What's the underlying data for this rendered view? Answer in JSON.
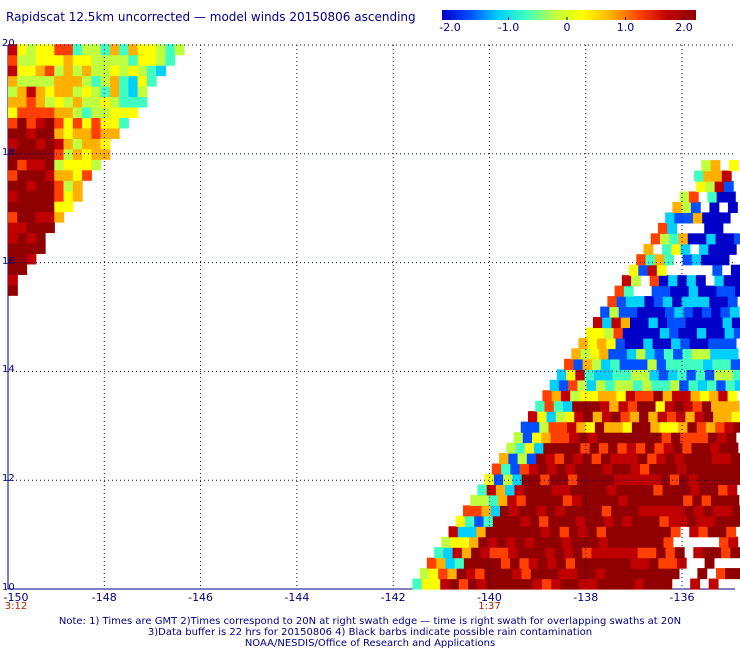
{
  "title": "Rapidscat 12.5km uncorrected — model winds 20150806 ascending",
  "colorbar": {
    "ticks": [
      "-2.0",
      "-1.0",
      "0",
      "1.0",
      "2.0"
    ],
    "range": [
      -2.0,
      2.0
    ],
    "colors": [
      "#0000c8",
      "#0050ff",
      "#00d0ff",
      "#40ffc0",
      "#c0ff40",
      "#ffff00",
      "#ffb000",
      "#ff4000",
      "#c00000",
      "#900000"
    ]
  },
  "times": [
    {
      "label": "3:12",
      "lon": -150
    },
    {
      "label": "1:37",
      "lon": -140
    }
  ],
  "notes": [
    "Note: 1) Times are GMT 2)Times correspond to 20N at right swath edge — time is right swath for overlapping swaths at 20N",
    "3)Data buffer is 22 hrs for 20150806 4) Black barbs indicate possible rain contamination",
    "NOAA/NESDIS/Office of Research and Applications"
  ],
  "chart_data": {
    "type": "heatmap",
    "title": "Rapidscat 12.5km uncorrected — model winds 20150806 ascending",
    "x_ticks": [
      "-150",
      "-148",
      "-146",
      "-144",
      "-142",
      "-140",
      "-138",
      "-136"
    ],
    "y_ticks": [
      "20",
      "18",
      "16",
      "14",
      "12",
      "10"
    ],
    "xlim": [
      -150,
      -134.9
    ],
    "ylim": [
      10,
      20
    ],
    "grid": true,
    "value_range": [
      -2.0,
      2.0
    ],
    "swaths": [
      {
        "region": "upper-left",
        "lon_range": [
          -150,
          -146.4
        ],
        "lat_range": [
          15.4,
          20
        ],
        "dominant_values": "-0.5 to 2.0, strongest positive (>1.5) along west edge near -150"
      },
      {
        "region": "lower-right",
        "lon_range": [
          -142,
          -134.9
        ],
        "lat_range": [
          10,
          17.8
        ],
        "dominant_values": "-2.0 to -1.0 north of 13.5N; 1.5 to 2.0 south of 13.5N"
      }
    ]
  }
}
